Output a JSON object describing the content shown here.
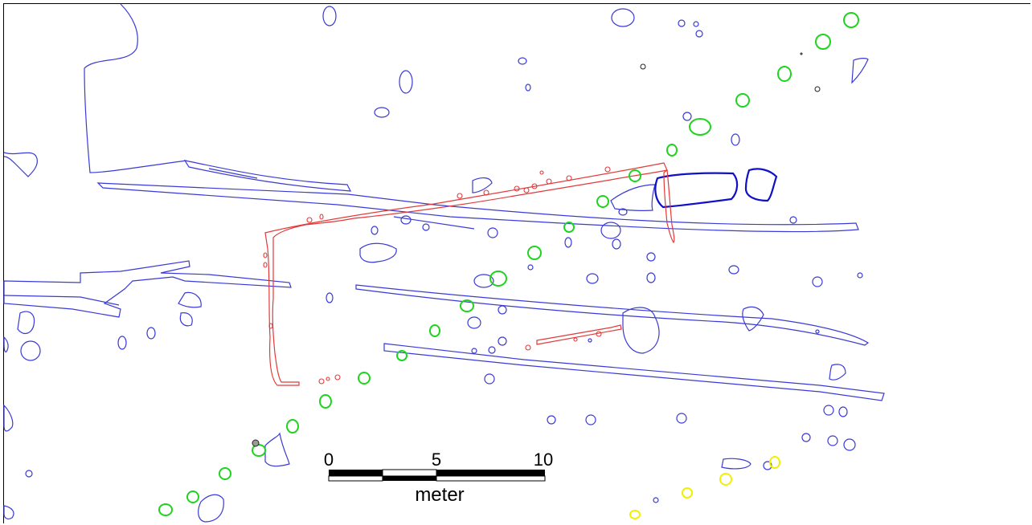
{
  "scale_bar": {
    "ticks": [
      "0",
      "5",
      "10"
    ],
    "unit": "meter"
  },
  "colors": {
    "features": "#3a3ad6",
    "features_bold": "#1010c8",
    "walls": "#e23a3a",
    "postholes_green": "#1ed41e",
    "postholes_yellow": "#f0f000",
    "background": "#ffffff"
  },
  "layers": [
    "blue-features",
    "red-walls",
    "green-postholes",
    "yellow-postholes",
    "black-points"
  ]
}
